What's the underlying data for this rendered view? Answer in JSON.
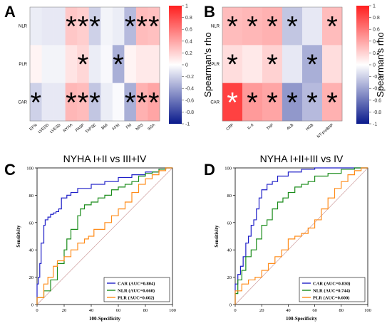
{
  "chart_data": [
    {
      "panel": "A",
      "type": "heatmap",
      "rows": [
        "NLR",
        "PLR",
        "CAR"
      ],
      "columns": [
        "EF%",
        "LVEDD",
        "LVESD",
        "NYHA",
        "PASP",
        "TAPSE",
        "BMI",
        "FFM",
        "FM",
        "NRS",
        "SGA"
      ],
      "values": [
        [
          -0.08,
          -0.1,
          -0.1,
          0.25,
          0.22,
          -0.2,
          -0.05,
          -0.08,
          -0.3,
          0.3,
          0.28
        ],
        [
          0.05,
          -0.05,
          -0.05,
          0.12,
          0.18,
          -0.08,
          -0.03,
          -0.35,
          0.05,
          0.1,
          0.1
        ],
        [
          -0.2,
          -0.1,
          -0.1,
          0.32,
          0.3,
          -0.25,
          -0.08,
          -0.02,
          -0.35,
          0.35,
          0.4
        ]
      ],
      "significant": [
        [
          false,
          false,
          false,
          true,
          true,
          true,
          false,
          false,
          true,
          true,
          true
        ],
        [
          false,
          false,
          false,
          false,
          true,
          false,
          false,
          true,
          false,
          false,
          false
        ],
        [
          true,
          false,
          false,
          true,
          true,
          true,
          false,
          false,
          true,
          true,
          true
        ]
      ],
      "colorbar": {
        "label": "Spearman's rho",
        "range": [
          -1,
          1
        ],
        "ticks": [
          "1",
          "0.8",
          "0.6",
          "0.4",
          "0.2",
          "0",
          "-0.2",
          "-0.4",
          "-0.6",
          "-0.8",
          "-1"
        ],
        "colors": [
          "#0a1a8c",
          "#ffffff",
          "#ff1f1f"
        ]
      }
    },
    {
      "panel": "B",
      "type": "heatmap",
      "rows": [
        "NLR",
        "PLR",
        "CAR"
      ],
      "columns": [
        "CRP",
        "IL-6",
        "TNF",
        "ALB",
        "HGB",
        "NT-proBNP"
      ],
      "values": [
        [
          0.3,
          0.32,
          0.35,
          -0.25,
          -0.1,
          0.3
        ],
        [
          0.15,
          0.1,
          0.2,
          -0.1,
          -0.35,
          0.15
        ],
        [
          0.85,
          0.45,
          0.4,
          -0.45,
          -0.3,
          0.35
        ]
      ],
      "significant": [
        [
          true,
          true,
          true,
          true,
          false,
          true
        ],
        [
          true,
          false,
          true,
          false,
          true,
          false
        ],
        [
          true,
          true,
          true,
          true,
          true,
          true
        ]
      ],
      "colorbar": {
        "label": "Spearman's rho",
        "range": [
          -1,
          1
        ],
        "ticks": [
          "1",
          "0.8",
          "0.6",
          "0.4",
          "0.2",
          "0",
          "-0.2",
          "-0.4",
          "-0.6",
          "-0.8",
          "-1"
        ],
        "colors": [
          "#0a1a8c",
          "#ffffff",
          "#ff1f1f"
        ]
      }
    },
    {
      "panel": "C",
      "type": "line",
      "title": "NYHA I+II vs III+IV",
      "xlabel": "100-Specificity",
      "ylabel": "Sensitivity",
      "xlim": [
        0,
        100
      ],
      "ylim": [
        0,
        100
      ],
      "ticks": [
        0,
        20,
        40,
        60,
        80,
        100
      ],
      "series": [
        {
          "name": "CAR (AUC=0.804)",
          "color": "#1f1fc8",
          "x": [
            0,
            1,
            2,
            3,
            5,
            6,
            8,
            10,
            12,
            14,
            16,
            18,
            22,
            25,
            30,
            40,
            50,
            60,
            70,
            80,
            90,
            95,
            100
          ],
          "y": [
            0,
            15,
            20,
            30,
            45,
            58,
            62,
            64,
            66,
            67,
            68,
            70,
            78,
            80,
            82,
            85,
            88,
            90,
            93,
            95,
            97,
            99,
            100
          ]
        },
        {
          "name": "NLR (AUC=0.660)",
          "color": "#1a8c1a",
          "x": [
            0,
            5,
            10,
            15,
            20,
            22,
            25,
            30,
            32,
            35,
            40,
            45,
            50,
            55,
            60,
            65,
            70,
            75,
            80,
            85,
            90,
            95,
            100
          ],
          "y": [
            0,
            5,
            10,
            18,
            30,
            40,
            48,
            55,
            65,
            70,
            73,
            75,
            78,
            80,
            84,
            86,
            88,
            90,
            94,
            96,
            97,
            99,
            100
          ]
        },
        {
          "name": "PLR (AUC=0.602)",
          "color": "#ff8c1a",
          "x": [
            0,
            5,
            8,
            12,
            15,
            20,
            25,
            30,
            35,
            38,
            42,
            50,
            55,
            60,
            65,
            70,
            75,
            80,
            85,
            90,
            95,
            100
          ],
          "y": [
            0,
            5,
            15,
            20,
            28,
            32,
            35,
            40,
            45,
            48,
            50,
            55,
            60,
            65,
            70,
            75,
            82,
            88,
            92,
            95,
            98,
            100
          ]
        }
      ],
      "legend": "bottom-right"
    },
    {
      "panel": "D",
      "type": "line",
      "title": "NYHA I+II+III vs IV",
      "xlabel": "100-Specificity",
      "ylabel": "Sensitivity",
      "xlim": [
        0,
        100
      ],
      "ylim": [
        0,
        100
      ],
      "ticks": [
        0,
        20,
        40,
        60,
        80,
        100
      ],
      "series": [
        {
          "name": "CAR (AUC=0.830)",
          "color": "#1f1fc8",
          "x": [
            0,
            2,
            4,
            6,
            8,
            10,
            12,
            14,
            16,
            18,
            20,
            24,
            28,
            32,
            40,
            50,
            60,
            70,
            80,
            90,
            100
          ],
          "y": [
            0,
            15,
            22,
            28,
            35,
            45,
            50,
            58,
            62,
            70,
            78,
            84,
            88,
            90,
            94,
            97,
            99,
            100,
            100,
            100,
            100
          ]
        },
        {
          "name": "NLR (AUC=0.744)",
          "color": "#1a8c1a",
          "x": [
            0,
            2,
            5,
            8,
            12,
            16,
            20,
            24,
            28,
            32,
            36,
            40,
            45,
            50,
            55,
            60,
            70,
            80,
            90,
            100
          ],
          "y": [
            0,
            8,
            18,
            25,
            35,
            40,
            48,
            58,
            62,
            70,
            75,
            78,
            82,
            86,
            88,
            90,
            94,
            96,
            99,
            100
          ]
        },
        {
          "name": "PLR (AUC=0.600)",
          "color": "#ff8c1a",
          "x": [
            0,
            5,
            10,
            15,
            20,
            25,
            30,
            35,
            40,
            45,
            50,
            55,
            60,
            65,
            70,
            75,
            80,
            85,
            90,
            95,
            100
          ],
          "y": [
            0,
            10,
            15,
            18,
            20,
            25,
            30,
            35,
            40,
            48,
            50,
            52,
            56,
            62,
            70,
            78,
            85,
            90,
            95,
            98,
            100
          ]
        }
      ],
      "legend": "bottom-right"
    }
  ]
}
